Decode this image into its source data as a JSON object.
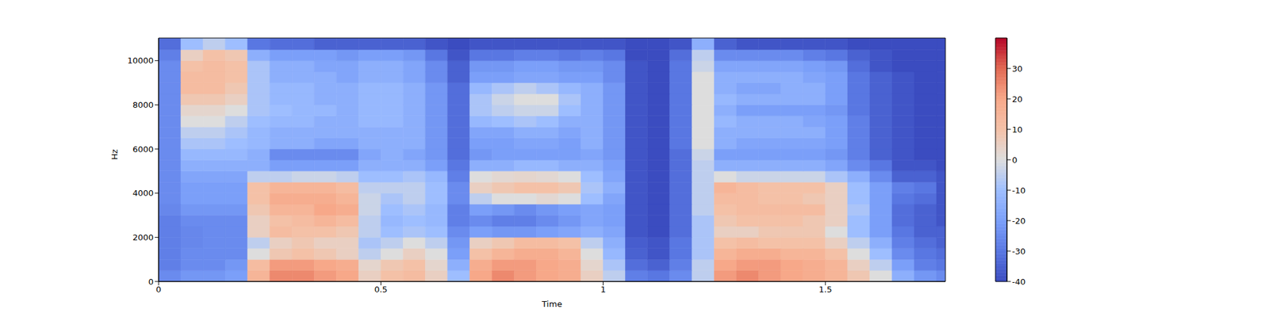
{
  "chart_data": {
    "type": "heatmap",
    "x_label": "Time",
    "y_label": "Hz",
    "x": [
      0,
      0.05,
      0.1,
      0.15,
      0.2,
      0.25,
      0.3,
      0.35,
      0.4,
      0.45,
      0.5,
      0.55,
      0.6,
      0.65,
      0.7,
      0.75,
      0.8,
      0.85,
      0.9,
      0.95,
      1.0,
      1.05,
      1.1,
      1.15,
      1.2,
      1.25,
      1.3,
      1.35,
      1.4,
      1.45,
      1.5,
      1.55,
      1.6,
      1.65,
      1.7,
      1.75
    ],
    "y": [
      0,
      500,
      1000,
      1500,
      2000,
      2500,
      3000,
      3500,
      4000,
      4500,
      5000,
      5500,
      6000,
      6500,
      7000,
      7500,
      8000,
      8500,
      9000,
      9500,
      10000,
      10500
    ],
    "cells": [
      [
        -25,
        -22,
        -22,
        -20,
        15,
        25,
        25,
        22,
        20,
        5,
        10,
        12,
        5,
        -10,
        20,
        25,
        22,
        20,
        18,
        5,
        -5,
        -28,
        -30,
        -25,
        -5,
        22,
        25,
        22,
        20,
        18,
        15,
        8,
        0,
        -15,
        -22,
        -25
      ],
      [
        -28,
        -25,
        -25,
        -22,
        12,
        22,
        22,
        20,
        18,
        3,
        8,
        10,
        3,
        -15,
        18,
        22,
        22,
        20,
        18,
        3,
        -8,
        -32,
        -35,
        -28,
        -5,
        20,
        22,
        22,
        20,
        18,
        15,
        5,
        -5,
        -20,
        -28,
        -30
      ],
      [
        -28,
        -25,
        -25,
        -25,
        0,
        8,
        10,
        8,
        5,
        -5,
        0,
        5,
        0,
        -20,
        10,
        15,
        18,
        18,
        15,
        0,
        -12,
        -35,
        -38,
        -30,
        -8,
        15,
        18,
        18,
        15,
        15,
        10,
        0,
        -10,
        -25,
        -30,
        -32
      ],
      [
        -28,
        -26,
        -25,
        -25,
        -5,
        5,
        8,
        5,
        5,
        -8,
        -5,
        0,
        -5,
        -22,
        5,
        8,
        12,
        12,
        10,
        -5,
        -15,
        -36,
        -38,
        -30,
        -8,
        10,
        12,
        10,
        10,
        10,
        5,
        -5,
        -15,
        -28,
        -32,
        -35
      ],
      [
        -28,
        -26,
        -25,
        -25,
        5,
        12,
        10,
        10,
        8,
        -5,
        -10,
        -8,
        -10,
        -25,
        -20,
        -22,
        -22,
        -20,
        -18,
        -15,
        -18,
        -38,
        -40,
        -32,
        -8,
        5,
        5,
        8,
        8,
        8,
        0,
        -10,
        -20,
        -30,
        -35,
        -35
      ],
      [
        -28,
        -25,
        -25,
        -25,
        5,
        10,
        12,
        15,
        12,
        -5,
        -12,
        -10,
        -12,
        -28,
        -25,
        -28,
        -28,
        -25,
        -22,
        -18,
        -20,
        -38,
        -40,
        -32,
        -8,
        8,
        10,
        10,
        10,
        8,
        5,
        -10,
        -20,
        -32,
        -35,
        -38
      ],
      [
        -26,
        -22,
        -22,
        -22,
        8,
        15,
        15,
        20,
        18,
        -3,
        -10,
        -8,
        -12,
        -28,
        -20,
        -22,
        -25,
        -22,
        -20,
        -18,
        -20,
        -38,
        -40,
        -32,
        -5,
        10,
        12,
        12,
        12,
        12,
        5,
        -8,
        -20,
        -32,
        -35,
        -38
      ],
      [
        -25,
        -20,
        -20,
        -20,
        10,
        18,
        18,
        18,
        15,
        -3,
        -8,
        -5,
        -10,
        -25,
        -5,
        0,
        0,
        2,
        0,
        -10,
        -18,
        -38,
        -40,
        -32,
        -5,
        12,
        12,
        10,
        10,
        8,
        5,
        -10,
        -20,
        -30,
        -32,
        -38
      ],
      [
        -25,
        -20,
        -20,
        -20,
        10,
        15,
        15,
        15,
        12,
        -5,
        -5,
        -5,
        -10,
        -25,
        5,
        8,
        10,
        10,
        8,
        -8,
        -15,
        -38,
        -40,
        -32,
        -5,
        15,
        12,
        10,
        10,
        10,
        5,
        -10,
        -20,
        -28,
        -30,
        -38
      ],
      [
        -25,
        -18,
        -18,
        -18,
        -5,
        -5,
        -3,
        -3,
        -5,
        -10,
        -10,
        -8,
        -12,
        -28,
        0,
        2,
        3,
        2,
        0,
        -10,
        -18,
        -38,
        -40,
        -32,
        -5,
        0,
        -3,
        -3,
        -3,
        -3,
        -8,
        -15,
        -25,
        -35,
        -35,
        -38
      ],
      [
        -25,
        -15,
        -15,
        -15,
        -15,
        -20,
        -20,
        -20,
        -20,
        -15,
        -15,
        -15,
        -20,
        -30,
        -15,
        -15,
        -12,
        -12,
        -15,
        -15,
        -20,
        -38,
        -40,
        -32,
        -5,
        -15,
        -15,
        -15,
        -15,
        -15,
        -18,
        -25,
        -30,
        -38,
        -38,
        -40
      ],
      [
        -25,
        -12,
        -12,
        -12,
        -15,
        -25,
        -25,
        -25,
        -25,
        -18,
        -15,
        -18,
        -22,
        -32,
        -22,
        -20,
        -20,
        -20,
        -20,
        -18,
        -22,
        -38,
        -40,
        -32,
        -3,
        -20,
        -20,
        -20,
        -20,
        -20,
        -22,
        -28,
        -35,
        -38,
        -40,
        -40
      ],
      [
        -25,
        -8,
        -8,
        -10,
        -12,
        -15,
        -15,
        -18,
        -18,
        -15,
        -15,
        -15,
        -22,
        -32,
        -20,
        -20,
        -18,
        -18,
        -20,
        -15,
        -22,
        -38,
        -40,
        -30,
        0,
        -15,
        -18,
        -18,
        -18,
        -18,
        -20,
        -28,
        -35,
        -38,
        -40,
        -40
      ],
      [
        -25,
        -5,
        -5,
        -8,
        -12,
        -15,
        -15,
        -15,
        -15,
        -15,
        -15,
        -15,
        -22,
        -32,
        -18,
        -18,
        -15,
        -15,
        -18,
        -15,
        -22,
        -38,
        -40,
        -30,
        0,
        -15,
        -15,
        -15,
        -15,
        -15,
        -20,
        -28,
        -35,
        -38,
        -40,
        -40
      ],
      [
        -25,
        0,
        0,
        -5,
        -10,
        -12,
        -12,
        -15,
        -15,
        -12,
        -12,
        -15,
        -22,
        -32,
        -12,
        -10,
        -8,
        -10,
        -15,
        -15,
        -22,
        -38,
        -40,
        -30,
        0,
        -12,
        -15,
        -15,
        -15,
        -18,
        -20,
        -28,
        -35,
        -38,
        -40,
        -40
      ],
      [
        -25,
        3,
        3,
        0,
        -8,
        -10,
        -12,
        -12,
        -15,
        -12,
        -12,
        -15,
        -22,
        -32,
        -8,
        -5,
        -3,
        -3,
        -10,
        -15,
        -22,
        -38,
        -40,
        -30,
        0,
        -15,
        -20,
        -20,
        -20,
        -20,
        -22,
        -30,
        -35,
        -38,
        -40,
        -40
      ],
      [
        -25,
        8,
        8,
        5,
        -8,
        -12,
        -12,
        -15,
        -15,
        -12,
        -12,
        -15,
        -22,
        -32,
        -8,
        -3,
        0,
        0,
        -8,
        -15,
        -22,
        -38,
        -40,
        -30,
        0,
        -12,
        -15,
        -15,
        -15,
        -15,
        -20,
        -30,
        -35,
        -38,
        -40,
        -40
      ],
      [
        -25,
        12,
        12,
        8,
        -8,
        -12,
        -12,
        -15,
        -15,
        -12,
        -12,
        -15,
        -22,
        -32,
        -12,
        -8,
        -5,
        -8,
        -12,
        -15,
        -22,
        -38,
        -40,
        -30,
        0,
        -15,
        -18,
        -18,
        -15,
        -15,
        -20,
        -30,
        -35,
        -38,
        -40,
        -40
      ],
      [
        -25,
        12,
        12,
        10,
        -8,
        -15,
        -15,
        -15,
        -18,
        -15,
        -15,
        -18,
        -25,
        -35,
        -20,
        -20,
        -18,
        -18,
        -20,
        -20,
        -25,
        -38,
        -40,
        -30,
        0,
        -15,
        -15,
        -15,
        -15,
        -18,
        -20,
        -30,
        -35,
        -38,
        -40,
        -40
      ],
      [
        -25,
        10,
        12,
        10,
        -8,
        -15,
        -15,
        -18,
        -18,
        -15,
        -15,
        -18,
        -25,
        -35,
        -22,
        -22,
        -20,
        -20,
        -22,
        -22,
        -25,
        -38,
        -40,
        -30,
        -3,
        -18,
        -18,
        -18,
        -18,
        -20,
        -22,
        -32,
        -38,
        -40,
        -40,
        -40
      ],
      [
        -28,
        5,
        10,
        8,
        -15,
        -20,
        -20,
        -20,
        -22,
        -20,
        -20,
        -22,
        -30,
        -38,
        -30,
        -30,
        -28,
        -28,
        -30,
        -28,
        -30,
        -40,
        -40,
        -32,
        -5,
        -25,
        -25,
        -25,
        -25,
        -28,
        -30,
        -35,
        -38,
        -40,
        -40,
        -40
      ],
      [
        -32,
        -10,
        -5,
        -10,
        -30,
        -32,
        -32,
        -35,
        -35,
        -35,
        -35,
        -35,
        -38,
        -40,
        -38,
        -38,
        -38,
        -38,
        -38,
        -38,
        -38,
        -40,
        -40,
        -38,
        -15,
        -35,
        -38,
        -38,
        -38,
        -38,
        -38,
        -40,
        -40,
        -40,
        -40,
        -40
      ]
    ],
    "xlim": [
      0,
      1.77
    ],
    "ylim": [
      0,
      11025
    ],
    "xticks": [
      0,
      0.5,
      1,
      1.5
    ],
    "yticks": [
      0,
      2000,
      4000,
      6000,
      8000,
      10000
    ],
    "colorbar": {
      "range": [
        -40,
        40
      ],
      "ticks": [
        -40,
        -30,
        -20,
        -10,
        0,
        10,
        20,
        30
      ]
    }
  }
}
